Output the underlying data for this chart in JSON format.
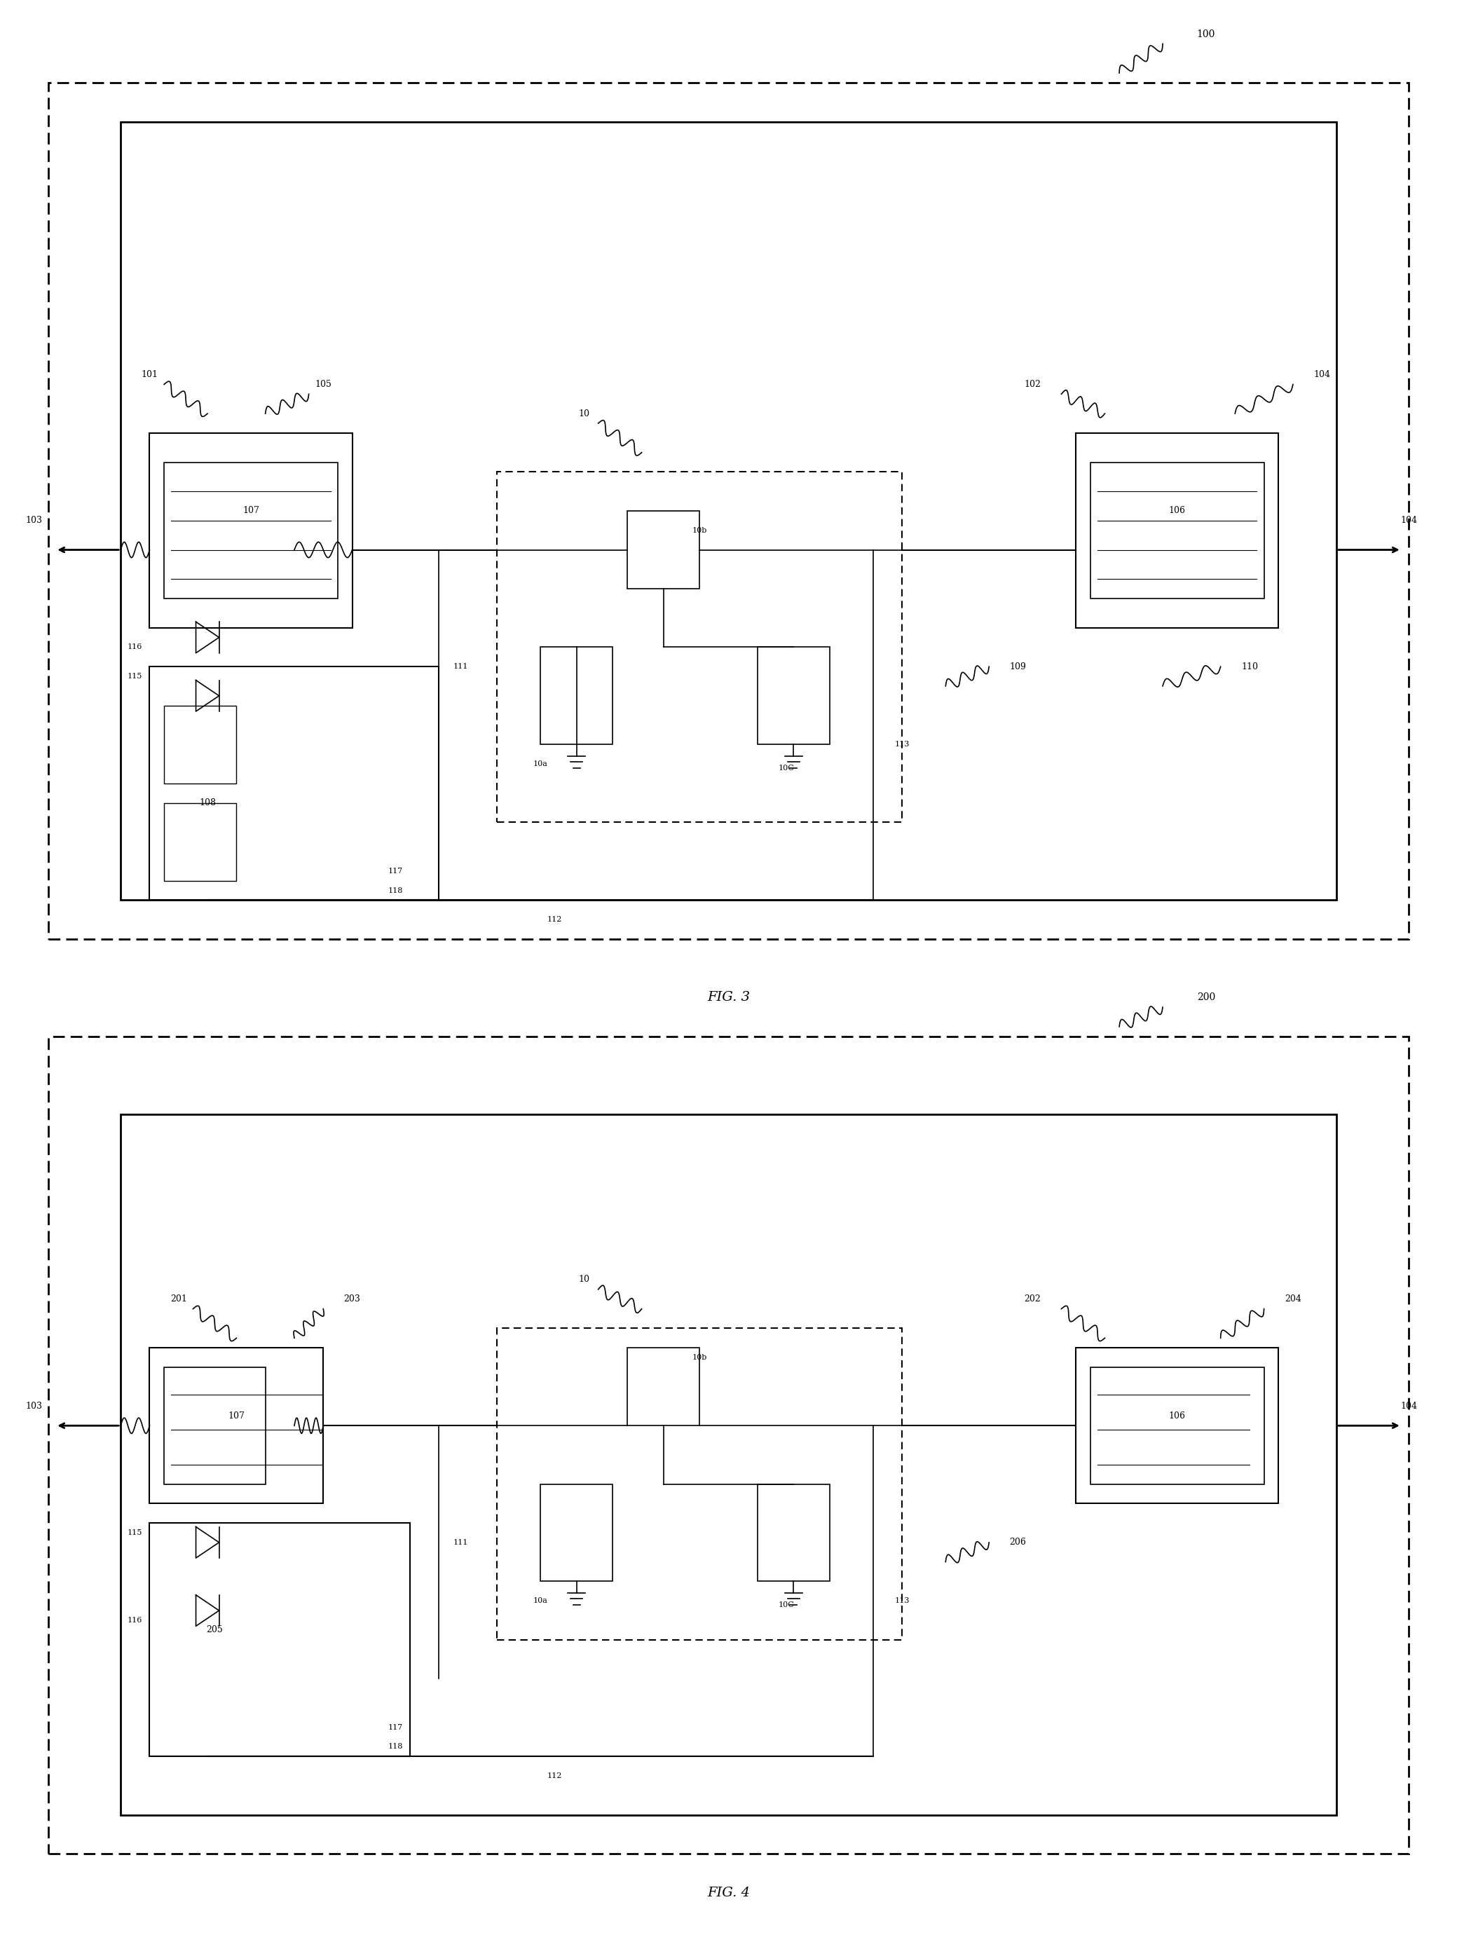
{
  "fig_width": 20.79,
  "fig_height": 27.91,
  "bg_color": "#ffffff",
  "line_color": "#000000",
  "fig3_title": "FIG. 3",
  "fig4_title": "FIG. 4",
  "fig3_label": "100",
  "fig4_label": "200"
}
